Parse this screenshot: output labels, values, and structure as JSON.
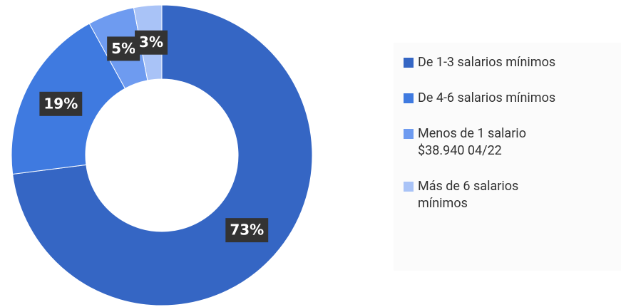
{
  "chart_data": {
    "type": "donut",
    "categories": [
      "De 1-3 salarios mínimos",
      "De 4-6 salarios mínimos",
      "Menos de 1 salario\n$38.940 04/22",
      "Más de 6 salarios\nmínimos"
    ],
    "values": [
      73,
      19,
      5,
      3
    ],
    "value_labels": [
      "73%",
      "19%",
      "5%",
      "3%"
    ],
    "colors": [
      "#3566c4",
      "#3f7ae0",
      "#6e9bf0",
      "#a9c3f7"
    ],
    "legend": "right"
  }
}
